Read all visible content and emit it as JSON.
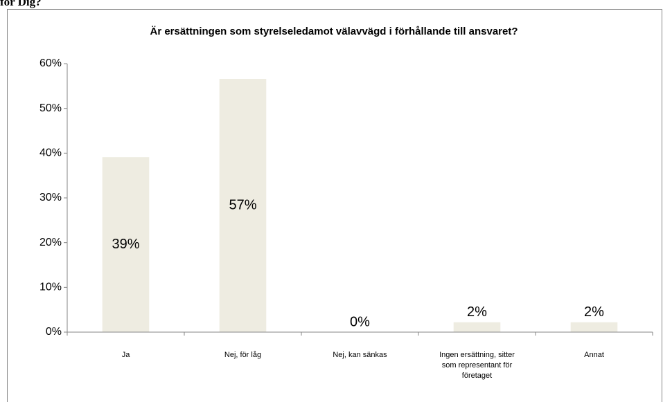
{
  "caption": "för Dig?",
  "chart_data": {
    "type": "bar",
    "title": "Är ersättningen som styrelseledamot välavvägd i förhållande till ansvaret?",
    "categories": [
      "Ja",
      "Nej, för låg",
      "Nej, kan sänkas",
      "Ingen ersättning, sitter som representant för företaget",
      "Annat"
    ],
    "values": [
      39.1,
      56.6,
      0,
      2.2,
      2.2
    ],
    "value_labels": [
      "39%",
      "57%",
      "0%",
      "2%",
      "2%"
    ],
    "color": "#eeece1",
    "ylim": [
      0,
      60
    ],
    "yticks": [
      {
        "value": 0,
        "label": "0%"
      },
      {
        "value": 10,
        "label": "10%"
      },
      {
        "value": 20,
        "label": "20%"
      },
      {
        "value": 30,
        "label": "30%"
      },
      {
        "value": 40,
        "label": "40%"
      },
      {
        "value": 50,
        "label": "50%"
      },
      {
        "value": 60,
        "label": "60%"
      }
    ],
    "grid": false
  }
}
